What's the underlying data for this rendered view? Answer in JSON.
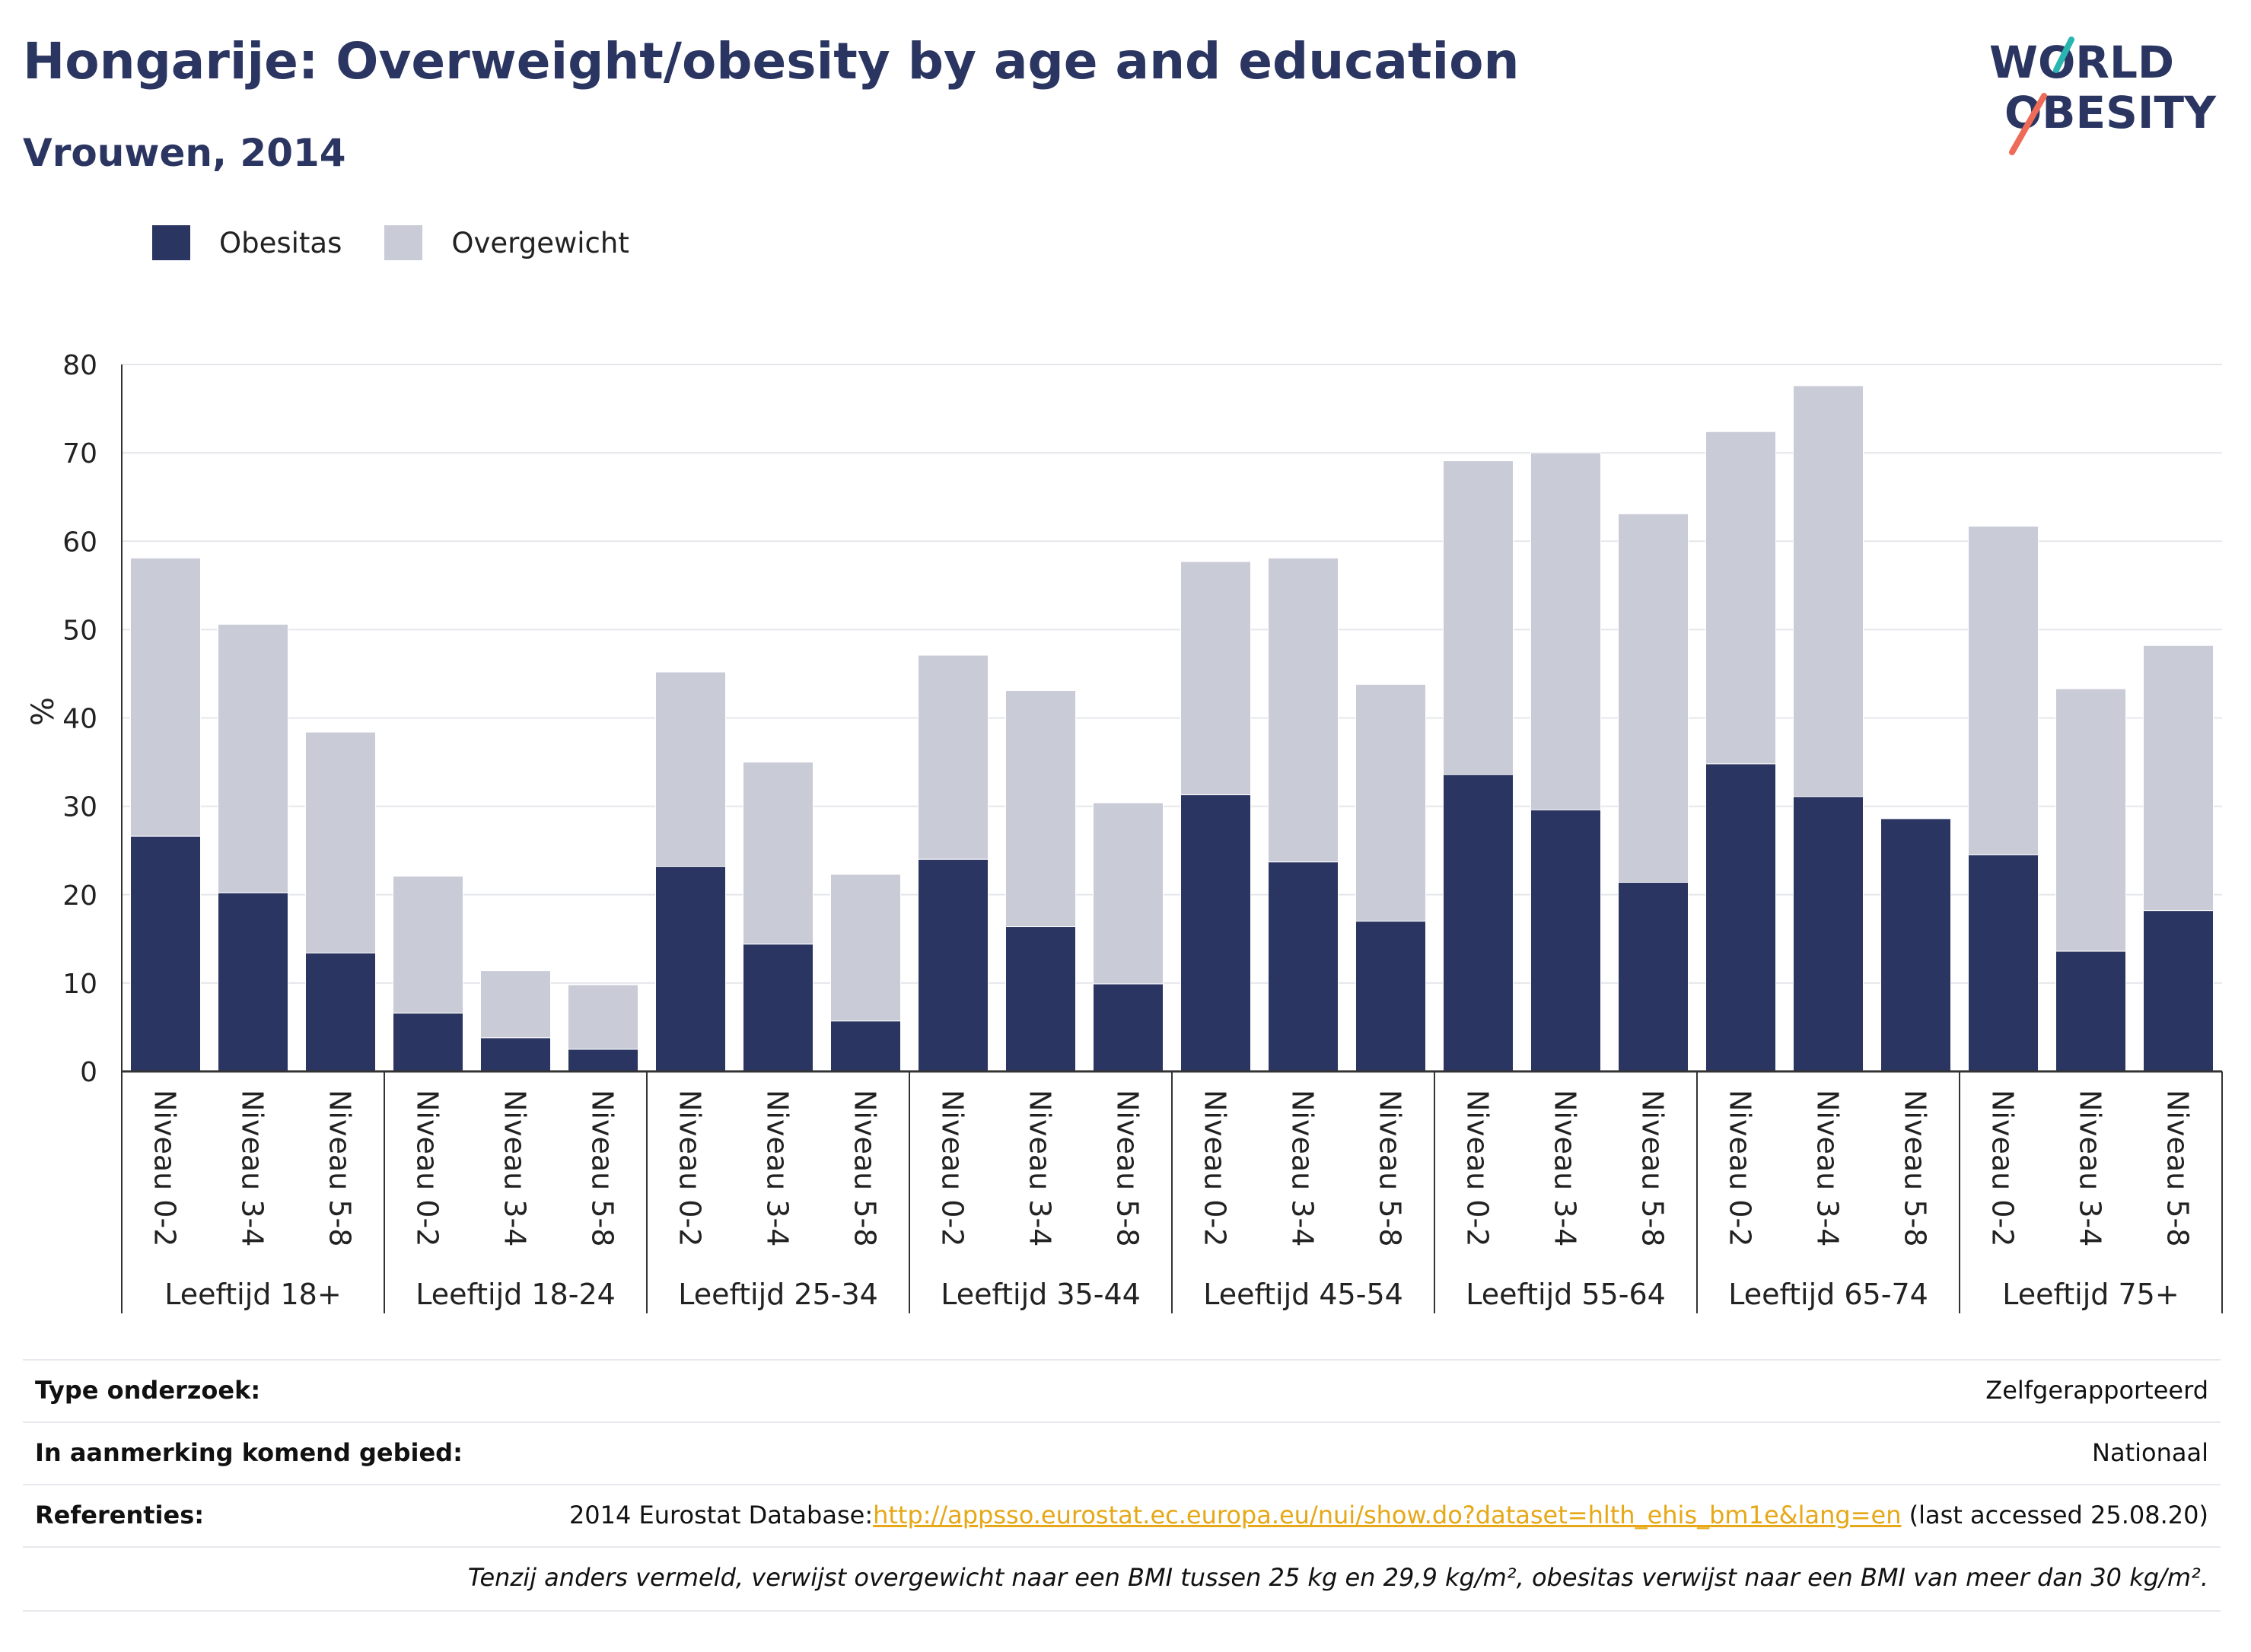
{
  "title": "Hongarije: Overweight/obesity by age and education",
  "subtitle": "Vrouwen, 2014",
  "logo": {
    "line1": "WORLD",
    "line2": "OBESITY"
  },
  "colors": {
    "obesitas": "#2b3561",
    "overgewicht": "#c9cbd7",
    "title": "#2b3561",
    "link": "#e6a817"
  },
  "legend": [
    {
      "label": "Obesitas",
      "color": "#2b3561"
    },
    {
      "label": "Overgewicht",
      "color": "#c9cbd7"
    }
  ],
  "chart_data": {
    "type": "bar",
    "stacked": true,
    "ylabel": "%",
    "ylim": [
      0,
      80
    ],
    "yticks": [
      0,
      10,
      20,
      30,
      40,
      50,
      60,
      70,
      80
    ],
    "grid": true,
    "groups": [
      {
        "label": "Leeftijd 18+",
        "bars": [
          {
            "label": "Niveau 0-2",
            "obesitas": 26.6,
            "totaal": 58.1
          },
          {
            "label": "Niveau 3-4",
            "obesitas": 20.2,
            "totaal": 50.6
          },
          {
            "label": "Niveau 5-8",
            "obesitas": 13.4,
            "totaal": 38.4
          }
        ]
      },
      {
        "label": "Leeftijd 18-24",
        "bars": [
          {
            "label": "Niveau 0-2",
            "obesitas": 6.6,
            "totaal": 22.1
          },
          {
            "label": "Niveau 3-4",
            "obesitas": 3.8,
            "totaal": 11.4
          },
          {
            "label": "Niveau 5-8",
            "obesitas": 2.5,
            "totaal": 9.8
          }
        ]
      },
      {
        "label": "Leeftijd 25-34",
        "bars": [
          {
            "label": "Niveau 0-2",
            "obesitas": 23.2,
            "totaal": 45.2
          },
          {
            "label": "Niveau 3-4",
            "obesitas": 14.4,
            "totaal": 35.0
          },
          {
            "label": "Niveau 5-8",
            "obesitas": 5.7,
            "totaal": 22.3
          }
        ]
      },
      {
        "label": "Leeftijd 35-44",
        "bars": [
          {
            "label": "Niveau 0-2",
            "obesitas": 24.0,
            "totaal": 47.1
          },
          {
            "label": "Niveau 3-4",
            "obesitas": 16.4,
            "totaal": 43.1
          },
          {
            "label": "Niveau 5-8",
            "obesitas": 9.9,
            "totaal": 30.4
          }
        ]
      },
      {
        "label": "Leeftijd 45-54",
        "bars": [
          {
            "label": "Niveau 0-2",
            "obesitas": 31.3,
            "totaal": 57.7
          },
          {
            "label": "Niveau 3-4",
            "obesitas": 23.7,
            "totaal": 58.1
          },
          {
            "label": "Niveau 5-8",
            "obesitas": 17.0,
            "totaal": 43.8
          }
        ]
      },
      {
        "label": "Leeftijd 55-64",
        "bars": [
          {
            "label": "Niveau 0-2",
            "obesitas": 33.6,
            "totaal": 69.1
          },
          {
            "label": "Niveau 3-4",
            "obesitas": 29.6,
            "totaal": 70.0
          },
          {
            "label": "Niveau 5-8",
            "obesitas": 21.4,
            "totaal": 63.1
          }
        ]
      },
      {
        "label": "Leeftijd 65-74",
        "bars": [
          {
            "label": "Niveau 0-2",
            "obesitas": 34.8,
            "totaal": 72.4
          },
          {
            "label": "Niveau 3-4",
            "obesitas": 31.1,
            "totaal": 77.6
          },
          {
            "label": "Niveau 5-8",
            "obesitas": 28.6,
            "totaal": 28.6
          }
        ]
      },
      {
        "label": "Leeftijd 75+",
        "bars": [
          {
            "label": "Niveau 0-2",
            "obesitas": 24.5,
            "totaal": 61.7
          },
          {
            "label": "Niveau 3-4",
            "obesitas": 13.6,
            "totaal": 43.3
          },
          {
            "label": "Niveau 5-8",
            "obesitas": 18.2,
            "totaal": 48.2
          }
        ]
      }
    ]
  },
  "meta": {
    "type_label": "Type onderzoek:",
    "type_value": "Zelfgerapporteerd",
    "area_label": "In aanmerking komend gebied:",
    "area_value": "Nationaal",
    "ref_label": "Referenties:",
    "ref_prefix": "2014 Eurostat Database:",
    "ref_link": "http://appsso.eurostat.ec.europa.eu/nui/show.do?dataset=hlth_ehis_bm1e&lang=en",
    "ref_suffix": " (last accessed 25.08.20)",
    "note": "Tenzij anders vermeld, verwijst overgewicht naar een BMI tussen 25 kg en 29,9 kg/m², obesitas verwijst naar een BMI van meer dan 30 kg/m²."
  }
}
